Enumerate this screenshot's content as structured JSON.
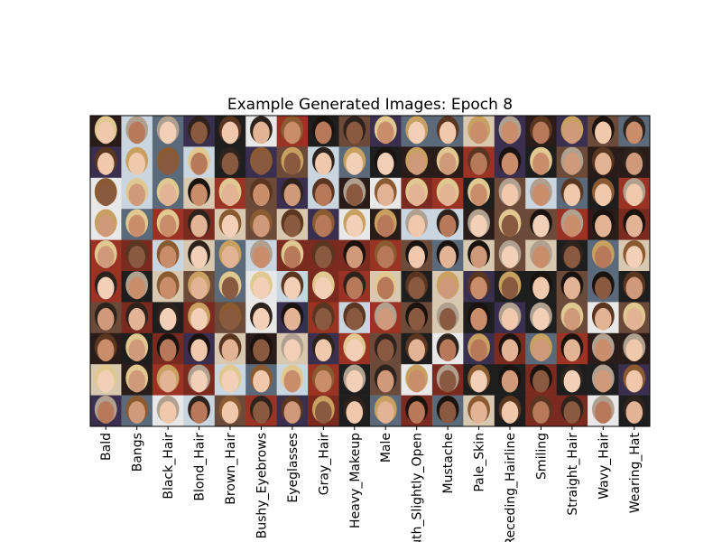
{
  "chart_data": {
    "type": "image_grid",
    "title": "Example Generated Images: Epoch 8",
    "categories": [
      "Bald",
      "Bangs",
      "Black_Hair",
      "Blond_Hair",
      "Brown_Hair",
      "Bushy_Eyebrows",
      "Eyeglasses",
      "Gray_Hair",
      "Heavy_Makeup",
      "Male",
      "Mouth_Slightly_Open",
      "Mustache",
      "Pale_Skin",
      "Receding_Hairline",
      "Smiling",
      "Straight_Hair",
      "Wavy_Hair",
      "Wearing_Hat"
    ]
  }
}
